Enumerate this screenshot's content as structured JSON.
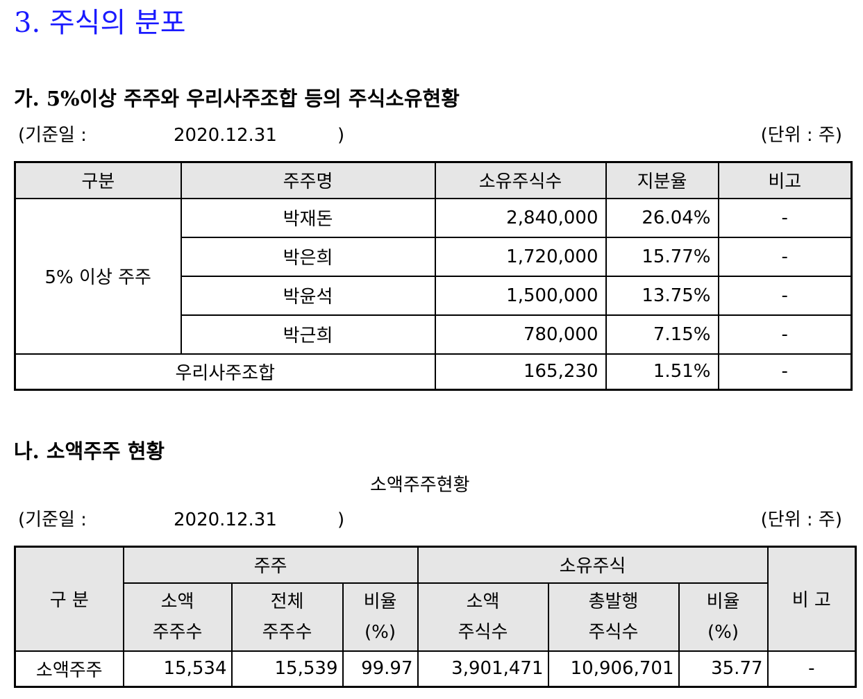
{
  "title": "3. 주식의 분포",
  "section_a": {
    "heading": "가. 5%이상 주주와 우리사주조합 등의 주식소유현황",
    "date_label": "(기준일 :",
    "date_value": "2020.12.31",
    "date_close": ")",
    "unit": "(단위 : 주)",
    "headers": [
      "구분",
      "주주명",
      "소유주식수",
      "지분율",
      "비고"
    ],
    "group_label": "5% 이상 주주",
    "rows": [
      {
        "name": "박재돈",
        "shares": "2,840,000",
        "ratio": "26.04%",
        "note": "-"
      },
      {
        "name": "박은희",
        "shares": "1,720,000",
        "ratio": "15.77%",
        "note": "-"
      },
      {
        "name": "박윤석",
        "shares": "1,500,000",
        "ratio": "13.75%",
        "note": "-"
      },
      {
        "name": "박근희",
        "shares": "780,000",
        "ratio": "7.15%",
        "note": "-"
      }
    ],
    "union": {
      "label": "우리사주조합",
      "shares": "165,230",
      "ratio": "1.51%",
      "note": "-"
    }
  },
  "section_b": {
    "heading": "나. 소액주주 현황",
    "caption": "소액주주현황",
    "date_label": "(기준일 :",
    "date_value": "2020.12.31",
    "date_close": ")",
    "unit": "(단위 : 주)",
    "header_group": "구 분",
    "header_holders": "주주",
    "header_shares": "소유주식",
    "header_note": "비 고",
    "sub": {
      "small_holders_1": "소액",
      "small_holders_2": "주주수",
      "total_holders_1": "전체",
      "total_holders_2": "주주수",
      "ratio1_1": "비율",
      "ratio1_2": "(%)",
      "small_shares_1": "소액",
      "small_shares_2": "주식수",
      "issued_1": "총발행",
      "issued_2": "주식수",
      "ratio2_1": "비율",
      "ratio2_2": "(%)"
    },
    "row": {
      "label": "소액주주",
      "small_holders": "15,534",
      "total_holders": "15,539",
      "ratio1": "99.97",
      "small_shares": "3,901,471",
      "issued": "10,906,701",
      "ratio2": "35.77",
      "note": "-"
    }
  }
}
